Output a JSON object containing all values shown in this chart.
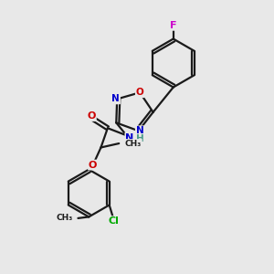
{
  "background_color": "#e8e8e8",
  "bond_color": "#1a1a1a",
  "atom_colors": {
    "O": "#cc0000",
    "N": "#0000cc",
    "F": "#cc00cc",
    "Cl": "#00aa00",
    "C": "#1a1a1a",
    "H": "#4a9a8a"
  },
  "figsize": [
    3.0,
    3.0
  ],
  "dpi": 100
}
